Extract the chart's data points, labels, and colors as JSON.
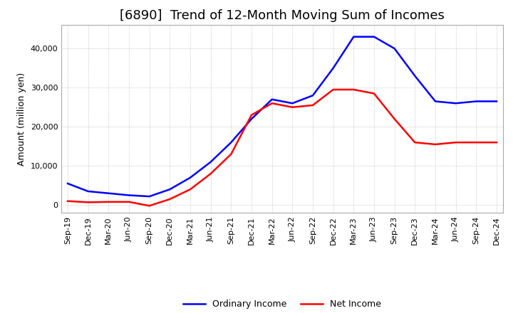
{
  "title": "[6890]  Trend of 12-Month Moving Sum of Incomes",
  "ylabel": "Amount (million yen)",
  "x_labels": [
    "Sep-19",
    "Dec-19",
    "Mar-20",
    "Jun-20",
    "Sep-20",
    "Dec-20",
    "Mar-21",
    "Jun-21",
    "Sep-21",
    "Dec-21",
    "Mar-22",
    "Jun-22",
    "Sep-22",
    "Dec-22",
    "Mar-23",
    "Jun-23",
    "Sep-23",
    "Dec-23",
    "Mar-24",
    "Jun-24",
    "Sep-24",
    "Dec-24"
  ],
  "ordinary_income": [
    5500,
    3500,
    3000,
    2500,
    2200,
    4000,
    7000,
    11000,
    16000,
    22000,
    27000,
    26000,
    28000,
    35000,
    43000,
    43000,
    40000,
    33000,
    26500,
    26000,
    26500,
    26500
  ],
  "net_income": [
    1000,
    700,
    800,
    800,
    -200,
    1500,
    4000,
    8000,
    13000,
    23000,
    26000,
    25000,
    25500,
    29500,
    29500,
    28500,
    22000,
    16000,
    15500,
    16000,
    16000,
    16000
  ],
  "ordinary_income_color": "#0000ff",
  "net_income_color": "#ff0000",
  "ylim": [
    -2000,
    46000
  ],
  "yticks": [
    0,
    10000,
    20000,
    30000,
    40000
  ],
  "background_color": "#ffffff",
  "grid_color": "#aaaaaa",
  "title_fontsize": 13,
  "axis_fontsize": 9,
  "tick_fontsize": 8,
  "legend_fontsize": 9
}
